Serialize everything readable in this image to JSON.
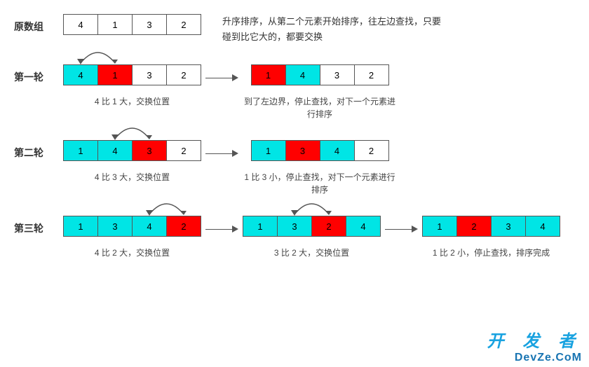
{
  "colors": {
    "cyan": "#00e5e5",
    "red": "#ff0000",
    "white": "#ffffff",
    "border": "#555555",
    "text": "#333333",
    "arrow": "#555555"
  },
  "cell_size": {
    "w": 50,
    "h": 30
  },
  "original": {
    "label": "原数组",
    "cells": [
      {
        "v": "4",
        "c": "white"
      },
      {
        "v": "1",
        "c": "white"
      },
      {
        "v": "3",
        "c": "white"
      },
      {
        "v": "2",
        "c": "white"
      }
    ],
    "desc": "升序排序，从第二个元素开始排序，往左边查找，只要碰到比它大的，都要交换"
  },
  "rounds": [
    {
      "label": "第一轮",
      "stages": [
        {
          "arc": {
            "from": 1,
            "to": 0
          },
          "cells": [
            {
              "v": "4",
              "c": "cyan"
            },
            {
              "v": "1",
              "c": "red"
            },
            {
              "v": "3",
              "c": "white"
            },
            {
              "v": "2",
              "c": "white"
            }
          ],
          "caption": "4 比 1 大，交换位置"
        },
        {
          "cells": [
            {
              "v": "1",
              "c": "red"
            },
            {
              "v": "4",
              "c": "cyan"
            },
            {
              "v": "3",
              "c": "white"
            },
            {
              "v": "2",
              "c": "white"
            }
          ],
          "caption": "到了左边界，停止查找，对下一个元素进行排序"
        }
      ]
    },
    {
      "label": "第二轮",
      "stages": [
        {
          "arc": {
            "from": 2,
            "to": 1
          },
          "cells": [
            {
              "v": "1",
              "c": "cyan"
            },
            {
              "v": "4",
              "c": "cyan"
            },
            {
              "v": "3",
              "c": "red"
            },
            {
              "v": "2",
              "c": "white"
            }
          ],
          "caption": "4 比 3 大，交换位置"
        },
        {
          "cells": [
            {
              "v": "1",
              "c": "cyan"
            },
            {
              "v": "3",
              "c": "red"
            },
            {
              "v": "4",
              "c": "cyan"
            },
            {
              "v": "2",
              "c": "white"
            }
          ],
          "caption": "1 比 3 小，停止查找，对下一个元素进行排序"
        }
      ]
    },
    {
      "label": "第三轮",
      "stages": [
        {
          "arc": {
            "from": 3,
            "to": 2
          },
          "cells": [
            {
              "v": "1",
              "c": "cyan"
            },
            {
              "v": "3",
              "c": "cyan"
            },
            {
              "v": "4",
              "c": "cyan"
            },
            {
              "v": "2",
              "c": "red"
            }
          ],
          "caption": "4 比 2 大，交换位置"
        },
        {
          "arc": {
            "from": 2,
            "to": 1
          },
          "cells": [
            {
              "v": "1",
              "c": "cyan"
            },
            {
              "v": "3",
              "c": "cyan"
            },
            {
              "v": "2",
              "c": "red"
            },
            {
              "v": "4",
              "c": "cyan"
            }
          ],
          "caption": "3 比 2 大，交换位置"
        },
        {
          "cells": [
            {
              "v": "1",
              "c": "cyan"
            },
            {
              "v": "2",
              "c": "red"
            },
            {
              "v": "3",
              "c": "cyan"
            },
            {
              "v": "4",
              "c": "cyan"
            }
          ],
          "caption": "1 比 2 小，停止查找，排序完成"
        }
      ]
    }
  ],
  "watermark": {
    "line1": "开 发 者",
    "line2": "DevZe.CoM"
  }
}
